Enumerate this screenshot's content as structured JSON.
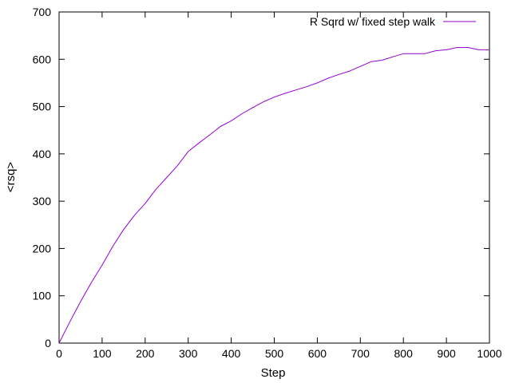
{
  "chart_data": {
    "type": "line",
    "title": "",
    "xlabel": "Step",
    "ylabel": "<rsq>",
    "xlim": [
      0,
      1000
    ],
    "ylim": [
      0,
      700
    ],
    "xticks": [
      0,
      100,
      200,
      300,
      400,
      500,
      600,
      700,
      800,
      900,
      1000
    ],
    "yticks": [
      0,
      100,
      200,
      300,
      400,
      500,
      600,
      700
    ],
    "grid": false,
    "legend": "top-right",
    "series": [
      {
        "name": "R Sqrd w/ fixed step walk",
        "color": "#9400d3",
        "x": [
          0,
          25,
          50,
          75,
          100,
          125,
          150,
          175,
          200,
          225,
          250,
          275,
          300,
          325,
          350,
          375,
          400,
          425,
          450,
          475,
          500,
          525,
          550,
          575,
          600,
          625,
          650,
          675,
          700,
          725,
          750,
          775,
          800,
          825,
          850,
          875,
          900,
          925,
          950,
          975,
          1000
        ],
        "y": [
          0,
          45,
          88,
          128,
          165,
          205,
          240,
          270,
          295,
          325,
          350,
          375,
          405,
          423,
          440,
          458,
          470,
          485,
          498,
          510,
          520,
          528,
          535,
          542,
          550,
          560,
          568,
          575,
          585,
          595,
          598,
          605,
          612,
          612,
          612,
          618,
          620,
          625,
          625,
          620,
          620
        ]
      }
    ]
  }
}
